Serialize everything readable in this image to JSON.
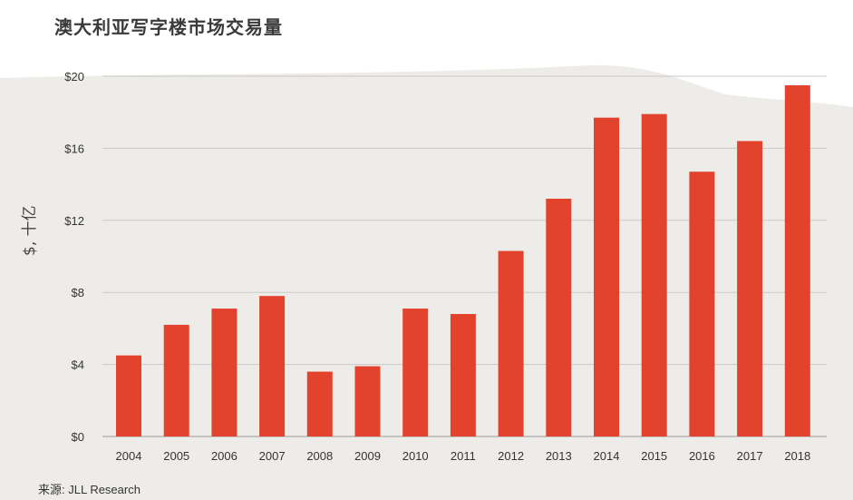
{
  "chart_data": {
    "type": "bar",
    "title": "澳大利亚写字楼市场交易量",
    "xlabel": "",
    "ylabel": "$, 十亿",
    "categories": [
      "2004",
      "2005",
      "2006",
      "2007",
      "2008",
      "2009",
      "2010",
      "2011",
      "2012",
      "2013",
      "2014",
      "2015",
      "2016",
      "2017",
      "2018"
    ],
    "values": [
      4.5,
      6.2,
      7.1,
      7.8,
      3.6,
      3.9,
      7.1,
      6.8,
      10.3,
      13.2,
      17.7,
      17.9,
      14.7,
      16.4,
      19.5
    ],
    "ylim": [
      0,
      20
    ],
    "yticks": [
      0,
      4,
      8,
      12,
      16,
      20
    ],
    "ytick_labels": [
      "$0",
      "$4",
      "$8",
      "$12",
      "$16",
      "$20"
    ],
    "bar_color": "#e3432c",
    "grid": true
  },
  "source": "来源: JLL Research"
}
